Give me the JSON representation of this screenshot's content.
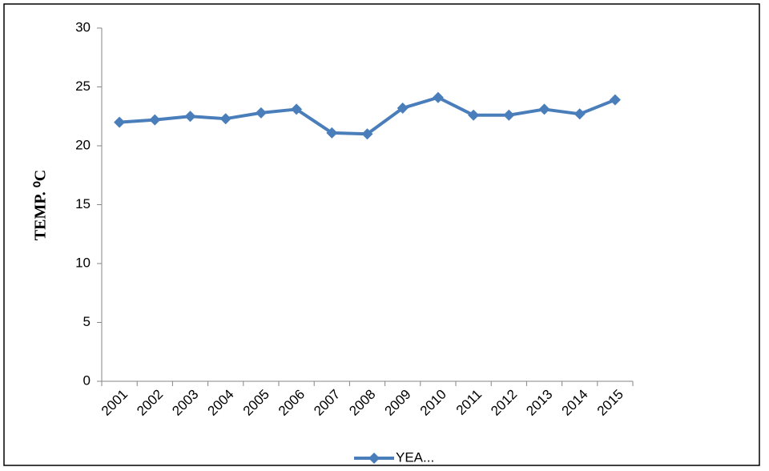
{
  "chart_data": {
    "type": "line",
    "y_label": "TEMP. ⁰C",
    "categories": [
      "2001",
      "2002",
      "2003",
      "2004",
      "2005",
      "2006",
      "2007",
      "2008",
      "2009",
      "2010",
      "2011",
      "2012",
      "2013",
      "2014",
      "2015"
    ],
    "series": [
      {
        "name": "YEA...",
        "color": "#4a7ebb",
        "values": [
          22.0,
          22.2,
          22.5,
          22.3,
          22.8,
          23.1,
          21.1,
          21.0,
          23.2,
          24.1,
          22.6,
          22.6,
          23.1,
          22.7,
          23.9
        ]
      }
    ],
    "ylim": [
      0,
      30
    ],
    "yticks": [
      0,
      5,
      10,
      15,
      20,
      25,
      30
    ],
    "grid": false,
    "legend": "bottom"
  }
}
